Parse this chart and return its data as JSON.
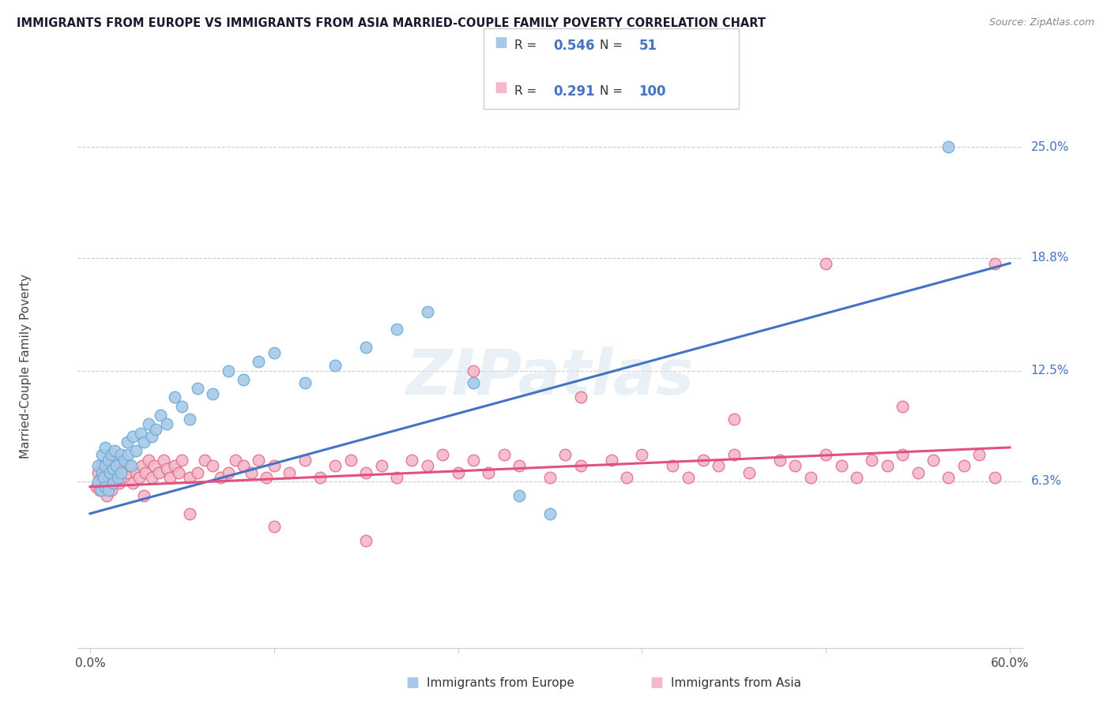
{
  "title": "IMMIGRANTS FROM EUROPE VS IMMIGRANTS FROM ASIA MARRIED-COUPLE FAMILY POVERTY CORRELATION CHART",
  "source": "Source: ZipAtlas.com",
  "ylabel": "Married-Couple Family Poverty",
  "ytick_labels": [
    "25.0%",
    "18.8%",
    "12.5%",
    "6.3%"
  ],
  "ytick_values": [
    0.25,
    0.188,
    0.125,
    0.063
  ],
  "xlim": [
    0.0,
    0.6
  ],
  "ylim": [
    -0.03,
    0.285
  ],
  "legend_europe": "Immigrants from Europe",
  "legend_asia": "Immigrants from Asia",
  "R_europe": 0.546,
  "N_europe": 51,
  "R_asia": 0.291,
  "N_asia": 100,
  "europe_color": "#a8c8e8",
  "europe_edge_color": "#6baed6",
  "asia_color": "#f4b8c8",
  "asia_edge_color": "#e07090",
  "europe_line_color": "#4472c4",
  "asia_line_color": "#e05080",
  "label_color": "#4472c4",
  "watermark": "ZIPatlas",
  "eu_x": [
    0.005,
    0.005,
    0.007,
    0.008,
    0.008,
    0.009,
    0.01,
    0.01,
    0.01,
    0.012,
    0.012,
    0.013,
    0.014,
    0.015,
    0.015,
    0.016,
    0.017,
    0.018,
    0.02,
    0.02,
    0.022,
    0.024,
    0.025,
    0.027,
    0.028,
    0.03,
    0.033,
    0.035,
    0.038,
    0.04,
    0.043,
    0.046,
    0.05,
    0.055,
    0.06,
    0.065,
    0.07,
    0.08,
    0.09,
    0.1,
    0.11,
    0.12,
    0.14,
    0.16,
    0.18,
    0.2,
    0.22,
    0.25,
    0.28,
    0.3,
    0.56
  ],
  "eu_y": [
    0.063,
    0.072,
    0.058,
    0.068,
    0.078,
    0.065,
    0.06,
    0.072,
    0.082,
    0.058,
    0.075,
    0.068,
    0.078,
    0.062,
    0.07,
    0.08,
    0.072,
    0.065,
    0.068,
    0.078,
    0.075,
    0.085,
    0.078,
    0.072,
    0.088,
    0.08,
    0.09,
    0.085,
    0.095,
    0.088,
    0.092,
    0.1,
    0.095,
    0.11,
    0.105,
    0.098,
    0.115,
    0.112,
    0.125,
    0.12,
    0.13,
    0.135,
    0.118,
    0.128,
    0.138,
    0.148,
    0.158,
    0.118,
    0.055,
    0.045,
    0.25
  ],
  "as_x": [
    0.004,
    0.005,
    0.006,
    0.007,
    0.008,
    0.009,
    0.01,
    0.011,
    0.012,
    0.013,
    0.014,
    0.015,
    0.016,
    0.017,
    0.018,
    0.019,
    0.02,
    0.022,
    0.024,
    0.026,
    0.028,
    0.03,
    0.032,
    0.034,
    0.036,
    0.038,
    0.04,
    0.042,
    0.045,
    0.048,
    0.05,
    0.052,
    0.055,
    0.058,
    0.06,
    0.065,
    0.07,
    0.075,
    0.08,
    0.085,
    0.09,
    0.095,
    0.1,
    0.105,
    0.11,
    0.115,
    0.12,
    0.13,
    0.14,
    0.15,
    0.16,
    0.17,
    0.18,
    0.19,
    0.2,
    0.21,
    0.22,
    0.23,
    0.24,
    0.25,
    0.26,
    0.27,
    0.28,
    0.3,
    0.31,
    0.32,
    0.34,
    0.35,
    0.36,
    0.38,
    0.39,
    0.4,
    0.41,
    0.42,
    0.43,
    0.45,
    0.46,
    0.47,
    0.48,
    0.49,
    0.5,
    0.51,
    0.52,
    0.53,
    0.54,
    0.55,
    0.56,
    0.57,
    0.58,
    0.59,
    0.035,
    0.065,
    0.12,
    0.18,
    0.25,
    0.32,
    0.42,
    0.48,
    0.53,
    0.59
  ],
  "as_y": [
    0.06,
    0.068,
    0.058,
    0.065,
    0.072,
    0.06,
    0.065,
    0.055,
    0.068,
    0.06,
    0.058,
    0.072,
    0.065,
    0.075,
    0.068,
    0.062,
    0.065,
    0.07,
    0.068,
    0.072,
    0.062,
    0.068,
    0.065,
    0.072,
    0.068,
    0.075,
    0.065,
    0.072,
    0.068,
    0.075,
    0.07,
    0.065,
    0.072,
    0.068,
    0.075,
    0.065,
    0.068,
    0.075,
    0.072,
    0.065,
    0.068,
    0.075,
    0.072,
    0.068,
    0.075,
    0.065,
    0.072,
    0.068,
    0.075,
    0.065,
    0.072,
    0.075,
    0.068,
    0.072,
    0.065,
    0.075,
    0.072,
    0.078,
    0.068,
    0.075,
    0.068,
    0.078,
    0.072,
    0.065,
    0.078,
    0.072,
    0.075,
    0.065,
    0.078,
    0.072,
    0.065,
    0.075,
    0.072,
    0.078,
    0.068,
    0.075,
    0.072,
    0.065,
    0.078,
    0.072,
    0.065,
    0.075,
    0.072,
    0.078,
    0.068,
    0.075,
    0.065,
    0.072,
    0.078,
    0.065,
    0.055,
    0.045,
    0.038,
    0.03,
    0.125,
    0.11,
    0.098,
    0.185,
    0.105,
    0.185
  ]
}
